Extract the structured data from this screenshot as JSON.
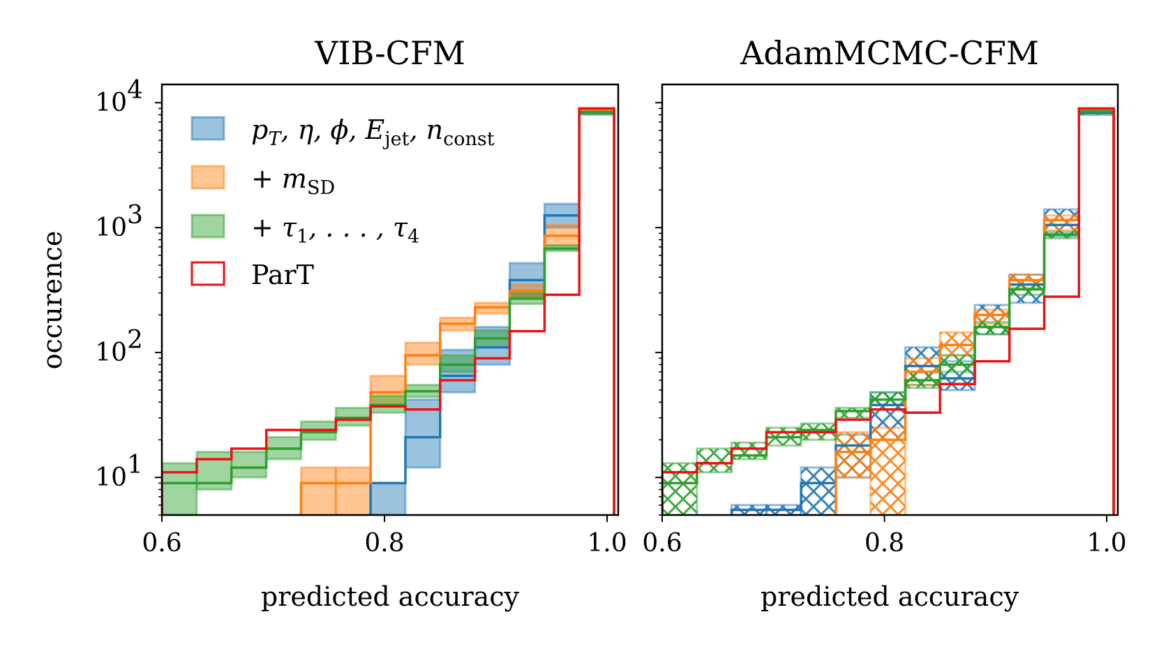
{
  "chart_data": [
    {
      "type": "histogram-step",
      "title": "VIB-CFM",
      "xlabel": "predicted accuracy",
      "ylabel": "occurence",
      "xlim": [
        0.6,
        1.01
      ],
      "ylim": [
        5,
        14000
      ],
      "yscale": "log",
      "xticks": [
        "0.6",
        "0.8",
        "1.0"
      ],
      "yticks": [
        {
          "base": "10",
          "exp": "1"
        },
        {
          "base": "10",
          "exp": "2"
        },
        {
          "base": "10",
          "exp": "3"
        },
        {
          "base": "10",
          "exp": "4"
        }
      ],
      "bin_edges": [
        0.6,
        0.6313,
        0.6625,
        0.6938,
        0.725,
        0.7563,
        0.7875,
        0.8188,
        0.85,
        0.8813,
        0.9125,
        0.9438,
        0.975,
        1.0063
      ],
      "legend_position": "upper-left",
      "series": [
        {
          "label_main": "p",
          "label_parts": [
            [
              "p",
              "T"
            ],
            [
              "η",
              ""
            ],
            [
              "ϕ",
              ""
            ],
            [
              "E",
              "jet"
            ],
            [
              "n",
              "const"
            ]
          ],
          "color": "#1f77b4",
          "band": true,
          "median": [
            null,
            null,
            null,
            null,
            null,
            null,
            9,
            21,
            65,
            110,
            380,
            1250,
            8300
          ],
          "lo": [
            null,
            null,
            null,
            null,
            null,
            null,
            5,
            12,
            48,
            80,
            280,
            1000,
            8000
          ],
          "hi": [
            null,
            null,
            null,
            null,
            null,
            null,
            9,
            42,
            105,
            160,
            520,
            1550,
            8600
          ]
        },
        {
          "label_plain": "+ ",
          "label_sym": "m",
          "label_sub": "SD",
          "color": "#ff7f0e",
          "band": true,
          "median": [
            null,
            null,
            null,
            null,
            9,
            9,
            48,
            95,
            170,
            230,
            310,
            860,
            8500
          ],
          "lo": [
            null,
            null,
            null,
            null,
            5,
            5,
            38,
            80,
            150,
            205,
            280,
            720,
            8200
          ],
          "hi": [
            null,
            null,
            null,
            null,
            12,
            12,
            65,
            120,
            190,
            250,
            350,
            1050,
            8800
          ]
        },
        {
          "label_plain": "+ ",
          "label_sym": "τ",
          "label_sub": "1",
          "label_tail": ", . . . , ",
          "label_sym2": "τ",
          "label_sub2": "4",
          "color": "#2ca02c",
          "band": true,
          "median": [
            9,
            9,
            12,
            17,
            23,
            30,
            38,
            49,
            80,
            130,
            270,
            680,
            8400
          ],
          "lo": [
            5,
            8,
            10,
            14,
            20,
            26,
            33,
            44,
            70,
            110,
            245,
            650,
            8200
          ],
          "hi": [
            13,
            16,
            16,
            21,
            28,
            36,
            45,
            55,
            95,
            150,
            300,
            720,
            8600
          ]
        },
        {
          "label_plain": "ParT",
          "color": "#ee1111",
          "band": false,
          "median": [
            11,
            14,
            17,
            24,
            24,
            29,
            37,
            35,
            60,
            90,
            148,
            290,
            9000
          ]
        }
      ]
    },
    {
      "type": "histogram-step",
      "title": "AdamMCMC-CFM",
      "xlabel": "predicted accuracy",
      "ylabel": "",
      "xlim": [
        0.6,
        1.01
      ],
      "ylim": [
        5,
        14000
      ],
      "yscale": "log",
      "xticks": [
        "0.6",
        "0.8",
        "1.0"
      ],
      "bin_edges": [
        0.6,
        0.6313,
        0.6625,
        0.6938,
        0.725,
        0.7563,
        0.7875,
        0.8188,
        0.85,
        0.8813,
        0.9125,
        0.9438,
        0.975,
        1.0063
      ],
      "hatched": true,
      "series": [
        {
          "color": "#1f77b4",
          "median": [
            null,
            null,
            5.5,
            5.5,
            9,
            18,
            38,
            78,
            62,
            200,
            350,
            1050,
            8300
          ],
          "lo": [
            null,
            null,
            5,
            5,
            5,
            10,
            20,
            55,
            50,
            140,
            250,
            850,
            8000
          ],
          "hi": [
            null,
            null,
            6,
            6,
            12,
            22,
            48,
            110,
            85,
            240,
            420,
            1400,
            8600
          ]
        },
        {
          "color": "#ff7f0e",
          "median": [
            null,
            null,
            null,
            null,
            null,
            16,
            20,
            70,
            115,
            200,
            380,
            1150,
            8600
          ],
          "lo": [
            null,
            null,
            null,
            null,
            null,
            10,
            5,
            55,
            95,
            170,
            330,
            950,
            8300
          ],
          "hi": [
            null,
            null,
            null,
            null,
            null,
            23,
            25,
            90,
            145,
            220,
            420,
            1250,
            8800
          ]
        },
        {
          "color": "#2ca02c",
          "median": [
            9,
            13,
            15,
            21,
            24,
            34,
            42,
            60,
            80,
            160,
            320,
            880,
            8500
          ],
          "lo": [
            5,
            11,
            14,
            18,
            20,
            30,
            38,
            52,
            70,
            140,
            290,
            820,
            8200
          ],
          "hi": [
            13,
            17,
            19,
            25,
            27,
            36,
            48,
            70,
            95,
            175,
            350,
            920,
            8700
          ]
        },
        {
          "color": "#ee1111",
          "median": [
            11,
            13,
            17,
            23,
            23,
            29,
            35,
            33,
            56,
            85,
            155,
            280,
            9000
          ]
        }
      ]
    }
  ]
}
